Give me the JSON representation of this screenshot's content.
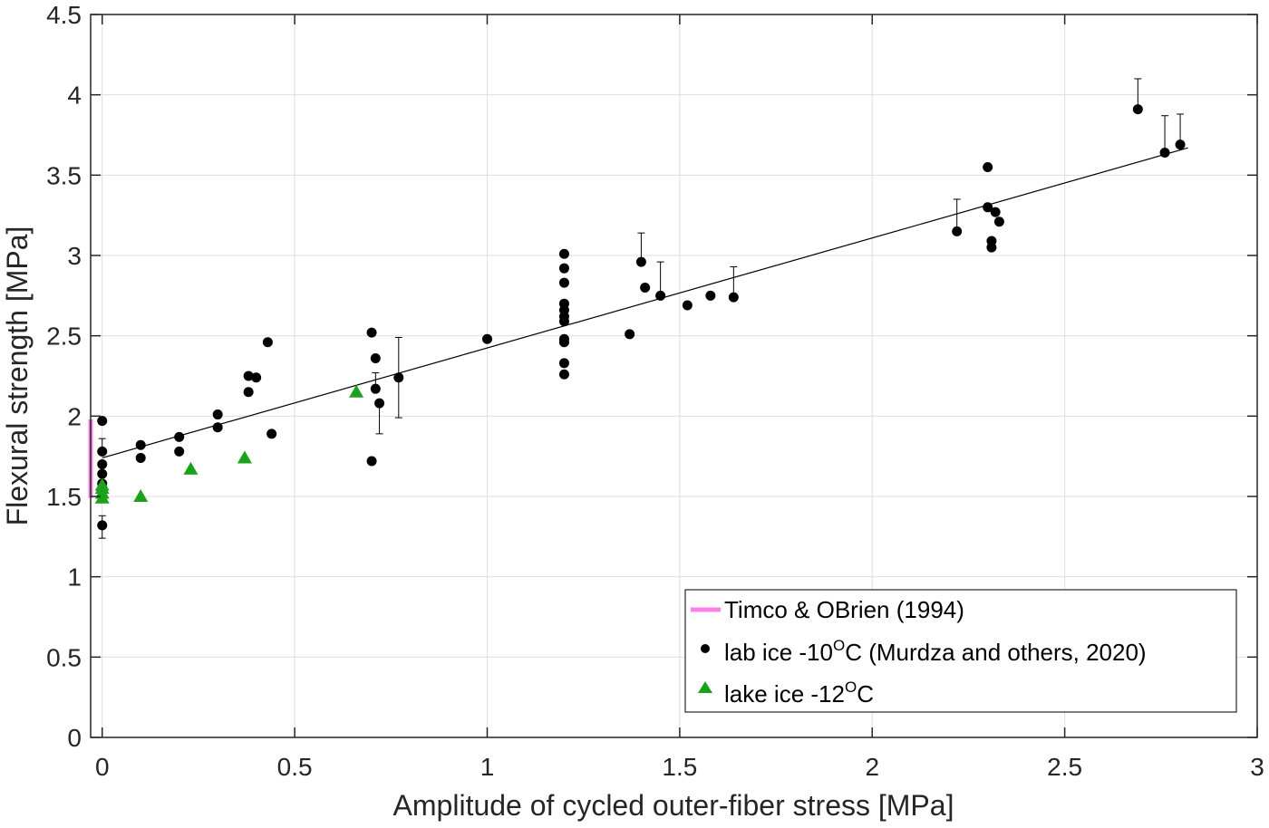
{
  "chart_data": {
    "type": "scatter",
    "xlabel": "Amplitude of cycled outer-fiber stress [MPa]",
    "ylabel": "Flexural strength [MPa]",
    "xlim": [
      -0.03,
      3
    ],
    "ylim": [
      0,
      4.5
    ],
    "grid": true,
    "legend_position": "bottom-right",
    "x_ticks": [
      "0",
      "0.5",
      "1",
      "1.5",
      "2",
      "2.5",
      "3"
    ],
    "y_ticks": [
      "0",
      "0.5",
      "1",
      "1.5",
      "2",
      "2.5",
      "3",
      "3.5",
      "4",
      "4.5"
    ],
    "x_tick_values": [
      0,
      0.5,
      1,
      1.5,
      2,
      2.5,
      3
    ],
    "y_tick_values": [
      0,
      0.5,
      1,
      1.5,
      2,
      2.5,
      3,
      3.5,
      4,
      4.5
    ],
    "colors": {
      "timco": "#ff80e6",
      "lab": "#000000",
      "lake": "#1aa31a",
      "fit": "#000000"
    },
    "fit_line": {
      "x": [
        0,
        2.82
      ],
      "y": [
        1.74,
        3.67
      ]
    },
    "series": [
      {
        "name": "Timco & OBrien (1994)",
        "kind": "range",
        "x": -0.03,
        "y": [
          1.49,
          1.98
        ]
      },
      {
        "name": "lab ice -10",
        "sup": "O",
        "suffix": "C (Murdza and others, 2020)",
        "kind": "points",
        "marker": "circle",
        "points": [
          [
            0,
            1.97
          ],
          [
            0,
            1.78
          ],
          [
            0,
            1.7
          ],
          [
            0,
            1.64
          ],
          [
            0,
            1.58
          ],
          [
            0,
            1.32
          ],
          [
            0.1,
            1.82
          ],
          [
            0.1,
            1.74
          ],
          [
            0.2,
            1.87
          ],
          [
            0.2,
            1.78
          ],
          [
            0.3,
            2.01
          ],
          [
            0.3,
            1.93
          ],
          [
            0.38,
            2.25
          ],
          [
            0.38,
            2.15
          ],
          [
            0.4,
            2.24
          ],
          [
            0.43,
            2.46
          ],
          [
            0.44,
            1.89
          ],
          [
            0.7,
            2.52
          ],
          [
            0.7,
            1.72
          ],
          [
            0.71,
            2.36
          ],
          [
            0.71,
            2.17
          ],
          [
            0.72,
            2.08
          ],
          [
            0.77,
            2.24
          ],
          [
            1.0,
            2.48
          ],
          [
            1.2,
            3.01
          ],
          [
            1.2,
            2.92
          ],
          [
            1.2,
            2.83
          ],
          [
            1.2,
            2.7
          ],
          [
            1.2,
            2.66
          ],
          [
            1.2,
            2.62
          ],
          [
            1.2,
            2.59
          ],
          [
            1.2,
            2.48
          ],
          [
            1.2,
            2.46
          ],
          [
            1.2,
            2.33
          ],
          [
            1.2,
            2.26
          ],
          [
            1.37,
            2.51
          ],
          [
            1.4,
            2.96
          ],
          [
            1.41,
            2.8
          ],
          [
            1.45,
            2.75
          ],
          [
            1.52,
            2.69
          ],
          [
            1.58,
            2.75
          ],
          [
            1.64,
            2.74
          ],
          [
            2.22,
            3.15
          ],
          [
            2.3,
            3.55
          ],
          [
            2.3,
            3.3
          ],
          [
            2.31,
            3.09
          ],
          [
            2.31,
            3.05
          ],
          [
            2.32,
            3.27
          ],
          [
            2.33,
            3.21
          ],
          [
            2.69,
            3.91
          ],
          [
            2.76,
            3.64
          ],
          [
            2.8,
            3.69
          ]
        ],
        "error_bars": [
          [
            0,
            1.78,
            1.86
          ],
          [
            0,
            1.32,
            1.24
          ],
          [
            0,
            1.32,
            1.38
          ],
          [
            0.71,
            2.17,
            2.27
          ],
          [
            0.72,
            2.08,
            1.89
          ],
          [
            0.77,
            2.24,
            2.49
          ],
          [
            0.77,
            2.24,
            1.99
          ],
          [
            1.4,
            2.96,
            3.14
          ],
          [
            1.45,
            2.75,
            2.96
          ],
          [
            1.64,
            2.74,
            2.93
          ],
          [
            2.22,
            3.15,
            3.35
          ],
          [
            2.69,
            3.91,
            4.1
          ],
          [
            2.76,
            3.64,
            3.87
          ],
          [
            2.8,
            3.69,
            3.88
          ]
        ]
      },
      {
        "name": "lake ice -12",
        "sup": "O",
        "suffix": "C",
        "kind": "points",
        "marker": "triangle",
        "points": [
          [
            0,
            1.49
          ],
          [
            0,
            1.52
          ],
          [
            0,
            1.55
          ],
          [
            0,
            1.57
          ],
          [
            0.1,
            1.5
          ],
          [
            0.23,
            1.67
          ],
          [
            0.37,
            1.74
          ],
          [
            0.66,
            2.15
          ]
        ]
      }
    ]
  }
}
